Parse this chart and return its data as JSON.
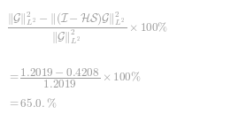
{
  "line1_left": "$= $",
  "line1_num": "$\\|\\mathcal{G}\\|^2_{L^2} - \\|(\\mathcal{I} - \\mathcal{H}\\mathcal{S})\\mathcal{G}\\|^2_{L^2}$",
  "line1_frac_bar_num": "$\\|\\mathcal{G}\\|^2_{L^2} - \\|(\\mathcal{I} - \\mathcal{H}\\mathcal{S})\\mathcal{G}\\|^2_{L^2}$",
  "line1_frac_bar_den": "$\\|\\mathcal{G}\\|^2_{L^2}$",
  "frac1": "$\\dfrac{\\|\\mathcal{G}\\|^2_{L^2} - \\|(\\mathcal{I} - \\mathcal{H}\\mathcal{S})\\mathcal{G}\\|^2_{L^2}}{\\|\\mathcal{G}\\|^2_{L^2}} \\times 100\\%$",
  "frac2": "$= \\dfrac{1.2019 - 0.4208}{1.2019} \\times 100\\%$",
  "line3": "$= 65.0.\\%$",
  "text_color": "#999999",
  "background_color": "#ffffff",
  "fontsize": 9.5
}
